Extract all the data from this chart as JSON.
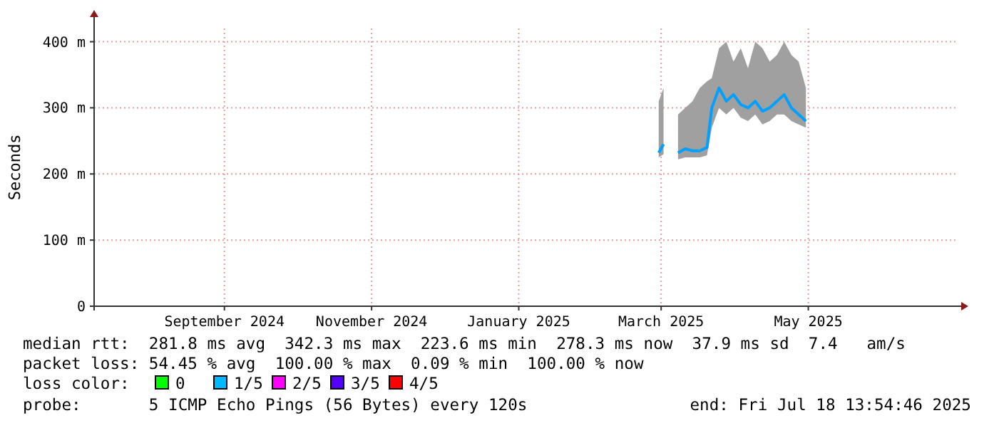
{
  "chart_data": {
    "type": "line",
    "ylabel": "Seconds",
    "xlim": [
      "2024-07-09",
      "2025-07-01"
    ],
    "xticks": [
      {
        "value": "2024-09-01",
        "label": "September 2024"
      },
      {
        "value": "2024-11-01",
        "label": "November 2024"
      },
      {
        "value": "2025-01-01",
        "label": "January 2025"
      },
      {
        "value": "2025-03-01",
        "label": "March 2025"
      },
      {
        "value": "2025-05-01",
        "label": "May 2025"
      }
    ],
    "ylim": [
      0,
      420
    ],
    "yticks": [
      0,
      {
        "value": 100,
        "label": "100 m"
      },
      {
        "value": 200,
        "label": "200 m"
      },
      {
        "value": 300,
        "label": "300 m"
      },
      {
        "value": 400,
        "label": "400 m"
      }
    ],
    "grid": true,
    "x": [
      "2025-02-28",
      "2025-03-02",
      "2025-03-05",
      "2025-03-08",
      "2025-03-11",
      "2025-03-14",
      "2025-03-17",
      "2025-03-20",
      "2025-03-22",
      "2025-03-25",
      "2025-03-28",
      "2025-03-31",
      "2025-04-03",
      "2025-04-06",
      "2025-04-09",
      "2025-04-12",
      "2025-04-15",
      "2025-04-18",
      "2025-04-21",
      "2025-04-24",
      "2025-04-27",
      "2025-04-30"
    ],
    "series": [
      {
        "color": "#00a0ff",
        "values": [
          232,
          245,
          null,
          232,
          238,
          235,
          235,
          240,
          300,
          330,
          310,
          320,
          305,
          300,
          310,
          295,
          300,
          310,
          320,
          300,
          290,
          280
        ],
        "lower": [
          225,
          230,
          null,
          222,
          225,
          225,
          225,
          228,
          270,
          300,
          290,
          300,
          285,
          280,
          290,
          275,
          280,
          290,
          290,
          280,
          275,
          270
        ],
        "upper": [
          310,
          330,
          null,
          290,
          300,
          310,
          330,
          340,
          345,
          390,
          400,
          370,
          390,
          360,
          400,
          390,
          370,
          380,
          400,
          380,
          370,
          330
        ]
      }
    ],
    "annotations": [
      "median rtt:  281.8 ms avg  342.3 ms max  223.6 ms min  278.3 ms now  37.9 ms sd  7.4   am/s",
      "packet loss: 54.45 % avg  100.00 % max  0.09 % min  100.00 % now",
      "loss color:",
      "0",
      "1/5",
      "2/5",
      "3/5",
      "4/5",
      "probe:       5 ICMP Echo Pings (56 Bytes) every 120s",
      "end: Fri Jul 18 13:54:46 2025"
    ]
  }
}
